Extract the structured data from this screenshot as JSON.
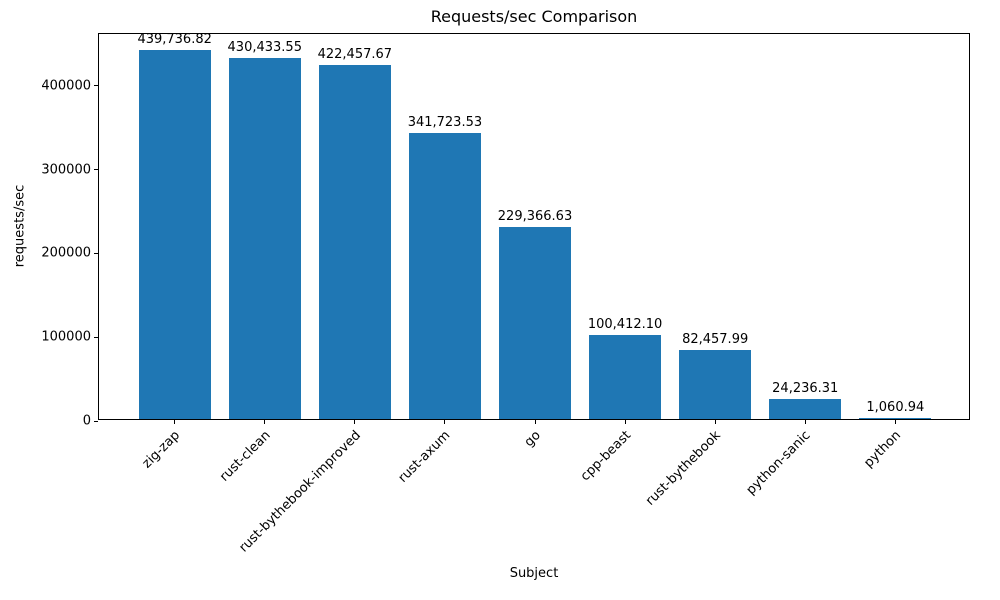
{
  "chart_data": {
    "type": "bar",
    "title": "Requests/sec Comparison",
    "xlabel": "Subject",
    "ylabel": "requests/sec",
    "categories": [
      "zig-zap",
      "rust-clean",
      "rust-bythebook-improved",
      "rust-axum",
      "go",
      "cpp-beast",
      "rust-bythebook",
      "python-sanic",
      "python"
    ],
    "values": [
      439736.82,
      430433.55,
      422457.67,
      341723.53,
      229366.63,
      100412.1,
      82457.99,
      24236.31,
      1060.94
    ],
    "value_labels": [
      "439,736.82",
      "430,433.55",
      "422,457.67",
      "341,723.53",
      "229,366.63",
      "100,412.10",
      "82,457.99",
      "24,236.31",
      "1,060.94"
    ],
    "bar_color": "#1f77b4",
    "bar_width_ratio": 0.8,
    "ylim": [
      0,
      461723.66
    ],
    "yticks": [
      0,
      100000,
      200000,
      300000,
      400000
    ],
    "ytick_labels": [
      "0",
      "100000",
      "200000",
      "300000",
      "400000"
    ],
    "grid": false,
    "legend": null,
    "x_label_rotation_deg": 45
  }
}
